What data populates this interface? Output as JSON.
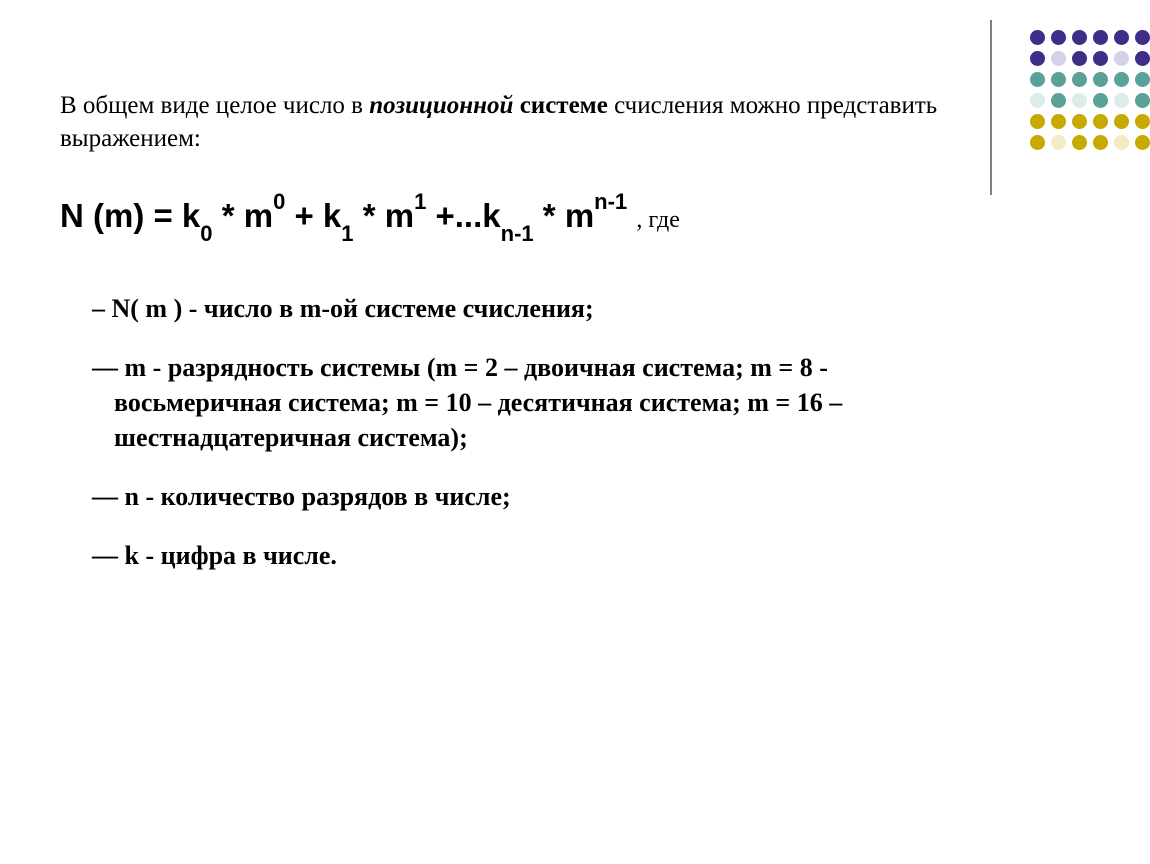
{
  "intro": {
    "prefix": "В общем виде целое число в ",
    "emph": "позиционной",
    "mid": " системе",
    "suffix": " счисления можно представить выражением:"
  },
  "formula": {
    "lhs": "N (m) = k",
    "s0": "0",
    "p1": " * m",
    "e0": "0",
    "p2": " + k",
    "s1": "1",
    "p3": " * m",
    "e1": "1",
    "p4": " +...k",
    "sn": "n-1",
    "p5": " * m",
    "en": "n-1",
    "tail": " ",
    "where": ", где"
  },
  "defs": {
    "d1": "N( m ) - число в m-ой системе счисления;",
    "d2": "m - разрядность системы (m = 2 – двоичная система; m = 8 - восьмеричная система; m = 10 – десятичная система; m = 16 – шестнадцатеричная система);",
    "d3": "n - количество разрядов в числе;",
    "d4": "k - цифра в числе.",
    "dash": "–",
    "dash2": "—"
  },
  "deco": {
    "rows": [
      {
        "colors": [
          "#3e2e87",
          "#3e2e87",
          "#3e2e87",
          "#3e2e87",
          "#3e2e87",
          "#3e2e87"
        ]
      },
      {
        "colors": [
          "#3e2e87",
          "#d6d0e8",
          "#3e2e87",
          "#3e2e87",
          "#d6d0e8",
          "#3e2e87"
        ]
      },
      {
        "colors": [
          "#5aa198",
          "#5aa198",
          "#5aa198",
          "#5aa198",
          "#5aa198",
          "#5aa198"
        ]
      },
      {
        "colors": [
          "#dcecea",
          "#5aa198",
          "#dcecea",
          "#5aa198",
          "#dcecea",
          "#5aa198"
        ]
      },
      {
        "colors": [
          "#c7a900",
          "#c7a900",
          "#c7a900",
          "#c7a900",
          "#c7a900",
          "#c7a900"
        ]
      },
      {
        "colors": [
          "#c7a900",
          "#f2ebc4",
          "#c7a900",
          "#c7a900",
          "#f2ebc4",
          "#c7a900"
        ]
      }
    ],
    "line_color": "#808080"
  }
}
